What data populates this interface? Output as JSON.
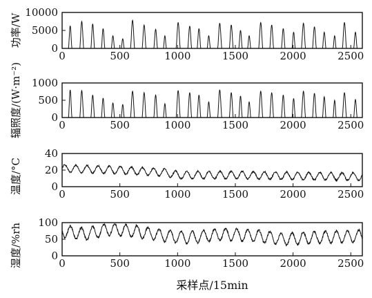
{
  "chart_data": [
    {
      "type": "line",
      "ylabel": "功率/W",
      "xlim": [
        0,
        2600
      ],
      "ylim": [
        0,
        10000
      ],
      "yticks": [
        0,
        5000,
        10000
      ],
      "xticks": [
        0,
        500,
        1000,
        1500,
        2000,
        2500
      ],
      "pattern": "daily-peaks",
      "n_points": 2600,
      "points_per_day": 96,
      "day_centers": [
        70,
        170,
        265,
        355,
        440,
        525,
        610,
        710,
        810,
        890,
        1005,
        1105,
        1185,
        1270,
        1365,
        1465,
        1545,
        1620,
        1720,
        1815,
        1915,
        2005,
        2090,
        2185,
        2270,
        2360,
        2445,
        2540
      ],
      "day_peaks": [
        6300,
        7500,
        6800,
        5500,
        3500,
        2700,
        7800,
        6500,
        5300,
        3500,
        7200,
        6200,
        5500,
        3500,
        7000,
        6500,
        5000,
        3500,
        7200,
        6500,
        5500,
        4500,
        7000,
        6000,
        4500,
        3500,
        7200,
        4500
      ],
      "day_widths": [
        30,
        34,
        32,
        30,
        28,
        26,
        36,
        34,
        32,
        26,
        36,
        34,
        32,
        28,
        36,
        34,
        30,
        28,
        36,
        34,
        32,
        28,
        36,
        34,
        30,
        26,
        36,
        30
      ],
      "noise": 0
    },
    {
      "type": "line",
      "ylabel": "辐照度/(W·m⁻²)",
      "xlim": [
        0,
        2600
      ],
      "ylim": [
        0,
        1000
      ],
      "yticks": [
        0,
        500,
        1000
      ],
      "xticks": [
        0,
        500,
        1000,
        1500,
        2000,
        2500
      ],
      "pattern": "daily-peaks",
      "n_points": 2600,
      "points_per_day": 96,
      "day_centers": [
        70,
        170,
        265,
        355,
        440,
        525,
        610,
        710,
        810,
        890,
        1005,
        1105,
        1185,
        1270,
        1365,
        1465,
        1545,
        1620,
        1720,
        1815,
        1915,
        2005,
        2090,
        2185,
        2270,
        2360,
        2445,
        2540
      ],
      "day_peaks": [
        800,
        780,
        650,
        560,
        420,
        380,
        760,
        720,
        650,
        400,
        780,
        720,
        650,
        450,
        800,
        720,
        620,
        450,
        760,
        720,
        650,
        550,
        760,
        700,
        600,
        500,
        720,
        520
      ],
      "day_widths": [
        30,
        34,
        32,
        30,
        28,
        26,
        36,
        34,
        32,
        26,
        36,
        34,
        32,
        28,
        36,
        34,
        30,
        28,
        36,
        34,
        32,
        28,
        36,
        34,
        30,
        26,
        36,
        30
      ],
      "noise": 0
    },
    {
      "type": "line",
      "ylabel": "温度/°C",
      "xlim": [
        0,
        2600
      ],
      "ylim": [
        0,
        40
      ],
      "yticks": [
        0,
        20,
        40
      ],
      "xticks": [
        0,
        500,
        1000,
        1500,
        2000,
        2500
      ],
      "pattern": "oscillation",
      "n_points": 2600,
      "points_per_day": 96,
      "baseline": [
        [
          0,
          22
        ],
        [
          500,
          20
        ],
        [
          900,
          17
        ],
        [
          1000,
          14
        ],
        [
          1500,
          14
        ],
        [
          2000,
          13
        ],
        [
          2600,
          12
        ]
      ],
      "amplitude": 4.5,
      "noise": 0.8
    },
    {
      "type": "line",
      "ylabel": "湿度/%rh",
      "xlim": [
        0,
        2600
      ],
      "ylim": [
        0,
        100
      ],
      "yticks": [
        0,
        50,
        100
      ],
      "xticks": [
        0,
        500,
        1000,
        1500,
        2000,
        2500
      ],
      "pattern": "humidity",
      "n_points": 2600,
      "points_per_day": 96,
      "baseline": [
        [
          0,
          75
        ],
        [
          200,
          65
        ],
        [
          400,
          80
        ],
        [
          600,
          75
        ],
        [
          900,
          60
        ],
        [
          1100,
          55
        ],
        [
          1400,
          65
        ],
        [
          1700,
          60
        ],
        [
          1900,
          50
        ],
        [
          2200,
          55
        ],
        [
          2600,
          60
        ]
      ],
      "amplitude": 18,
      "noise": 3
    }
  ],
  "xlabel": "采样点/15min"
}
